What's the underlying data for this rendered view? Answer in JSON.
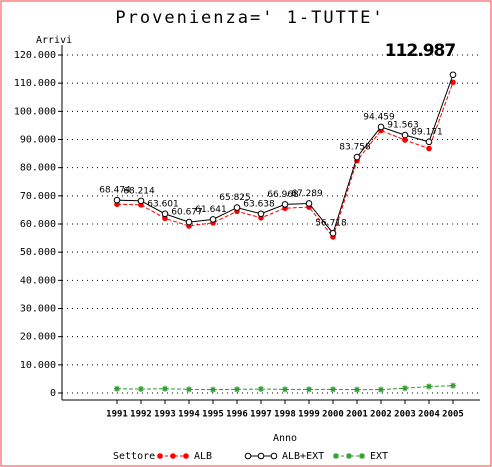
{
  "chart_data": {
    "type": "line",
    "title": "Provenienza=' 1-TUTTE'",
    "y_label": "Arrivi",
    "x_label": "Anno",
    "annotation": "112.987",
    "legend_title": "Settore",
    "categories": [
      "1991",
      "1992",
      "1993",
      "1994",
      "1995",
      "1996",
      "1997",
      "1998",
      "1999",
      "2000",
      "2001",
      "2002",
      "2003",
      "2004",
      "2005"
    ],
    "series": [
      {
        "name": "ALB",
        "color": "#ff0000",
        "marker": "dot",
        "values": [
          67000,
          66800,
          62000,
          59300,
          60400,
          64500,
          62200,
          65600,
          66000,
          55400,
          82500,
          93200,
          89800,
          86800,
          110300
        ]
      },
      {
        "name": "ALB+EXT",
        "color": "#000000",
        "marker": "circle",
        "values": [
          68474,
          68214,
          63601,
          60677,
          61641,
          65825,
          63638,
          66968,
          67289,
          56718,
          83758,
          94459,
          91563,
          89171,
          112987
        ],
        "value_labels": [
          "68.474",
          "68.214",
          "63.601",
          "60.677",
          "61.641",
          "65.825",
          "63.638",
          "66.968",
          "67.289",
          "56.718",
          "83.758",
          "94.459",
          "91.563",
          "89.171",
          null
        ]
      },
      {
        "name": "EXT",
        "color": "#2e9b2e",
        "marker": "star",
        "values": [
          1500,
          1400,
          1500,
          1300,
          1200,
          1300,
          1400,
          1300,
          1300,
          1300,
          1200,
          1200,
          1700,
          2300,
          2600
        ]
      }
    ],
    "ylim": [
      0,
      120000
    ],
    "yticks": [
      {
        "value": 0,
        "label": "0"
      },
      {
        "value": 10000,
        "label": "10.000"
      },
      {
        "value": 20000,
        "label": "20.000"
      },
      {
        "value": 30000,
        "label": "30.000"
      },
      {
        "value": 40000,
        "label": "40.000"
      },
      {
        "value": 50000,
        "label": "50.000"
      },
      {
        "value": 60000,
        "label": "60.000"
      },
      {
        "value": 70000,
        "label": "70.000"
      },
      {
        "value": 80000,
        "label": "80.000"
      },
      {
        "value": 90000,
        "label": "90.000"
      },
      {
        "value": 100000,
        "label": "100.000"
      },
      {
        "value": 110000,
        "label": "110.000"
      },
      {
        "value": 120000,
        "label": "120.000"
      }
    ],
    "grid": true
  }
}
